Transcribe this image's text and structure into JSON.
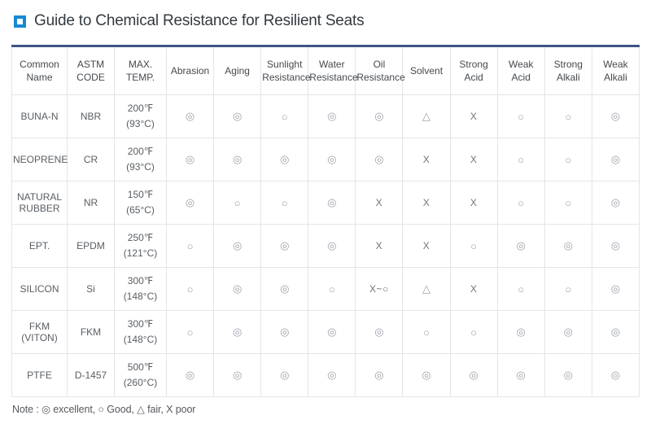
{
  "page_title": {
    "icon": "square-bullet",
    "text": "Guide to Chemical Resistance for Resilient Seats"
  },
  "colors": {
    "title_icon_blue": "#1789d3",
    "table_top_border_navy": "#3f5388",
    "grid_line": "#e4e5e8",
    "symbol_gray": "#9aa0a8",
    "text_dark": "#333a40"
  },
  "legend": {
    "excellent": "◎",
    "good": "○",
    "fair": "△",
    "poor": "X"
  },
  "table": {
    "columns": [
      "Common Name",
      "ASTM CODE",
      "MAX. TEMP.",
      "Abrasion",
      "Aging",
      "Sunlight Resistance",
      "Water Resistance",
      "Oil Resistance",
      "Solvent",
      "Strong Acid",
      "Weak Acid",
      "Strong Alkali",
      "Weak Alkali"
    ],
    "rows": [
      [
        "BUNA-N",
        "NBR",
        "200℉\n(93°C)",
        "◎",
        "◎",
        "○",
        "◎",
        "◎",
        "△",
        "X",
        "○",
        "○",
        "◎"
      ],
      [
        "NEOPRENE",
        "CR",
        "200℉\n(93°C)",
        "◎",
        "◎",
        "◎",
        "◎",
        "◎",
        "X",
        "X",
        "○",
        "○",
        "◎"
      ],
      [
        "NATURAL RUBBER",
        "NR",
        "150℉\n(65°C)",
        "◎",
        "○",
        "○",
        "◎",
        "X",
        "X",
        "X",
        "○",
        "○",
        "◎"
      ],
      [
        "EPT.",
        "EPDM",
        "250℉\n(121°C)",
        "○",
        "◎",
        "◎",
        "◎",
        "X",
        "X",
        "○",
        "◎",
        "◎",
        "◎"
      ],
      [
        "SILICON",
        "Si",
        "300℉\n(148°C)",
        "○",
        "◎",
        "◎",
        "○",
        "X~○",
        "△",
        "X",
        "○",
        "○",
        "◎"
      ],
      [
        "FKM (VITON)",
        "FKM",
        "300℉\n(148°C)",
        "○",
        "◎",
        "◎",
        "◎",
        "◎",
        "○",
        "○",
        "◎",
        "◎",
        "◎"
      ],
      [
        "PTFE",
        "D-1457",
        "500℉\n(260°C)",
        "◎",
        "◎",
        "◎",
        "◎",
        "◎",
        "◎",
        "◎",
        "◎",
        "◎",
        "◎"
      ]
    ]
  },
  "note": "Note : ◎ excellent, ○ Good, △ fair, X poor"
}
